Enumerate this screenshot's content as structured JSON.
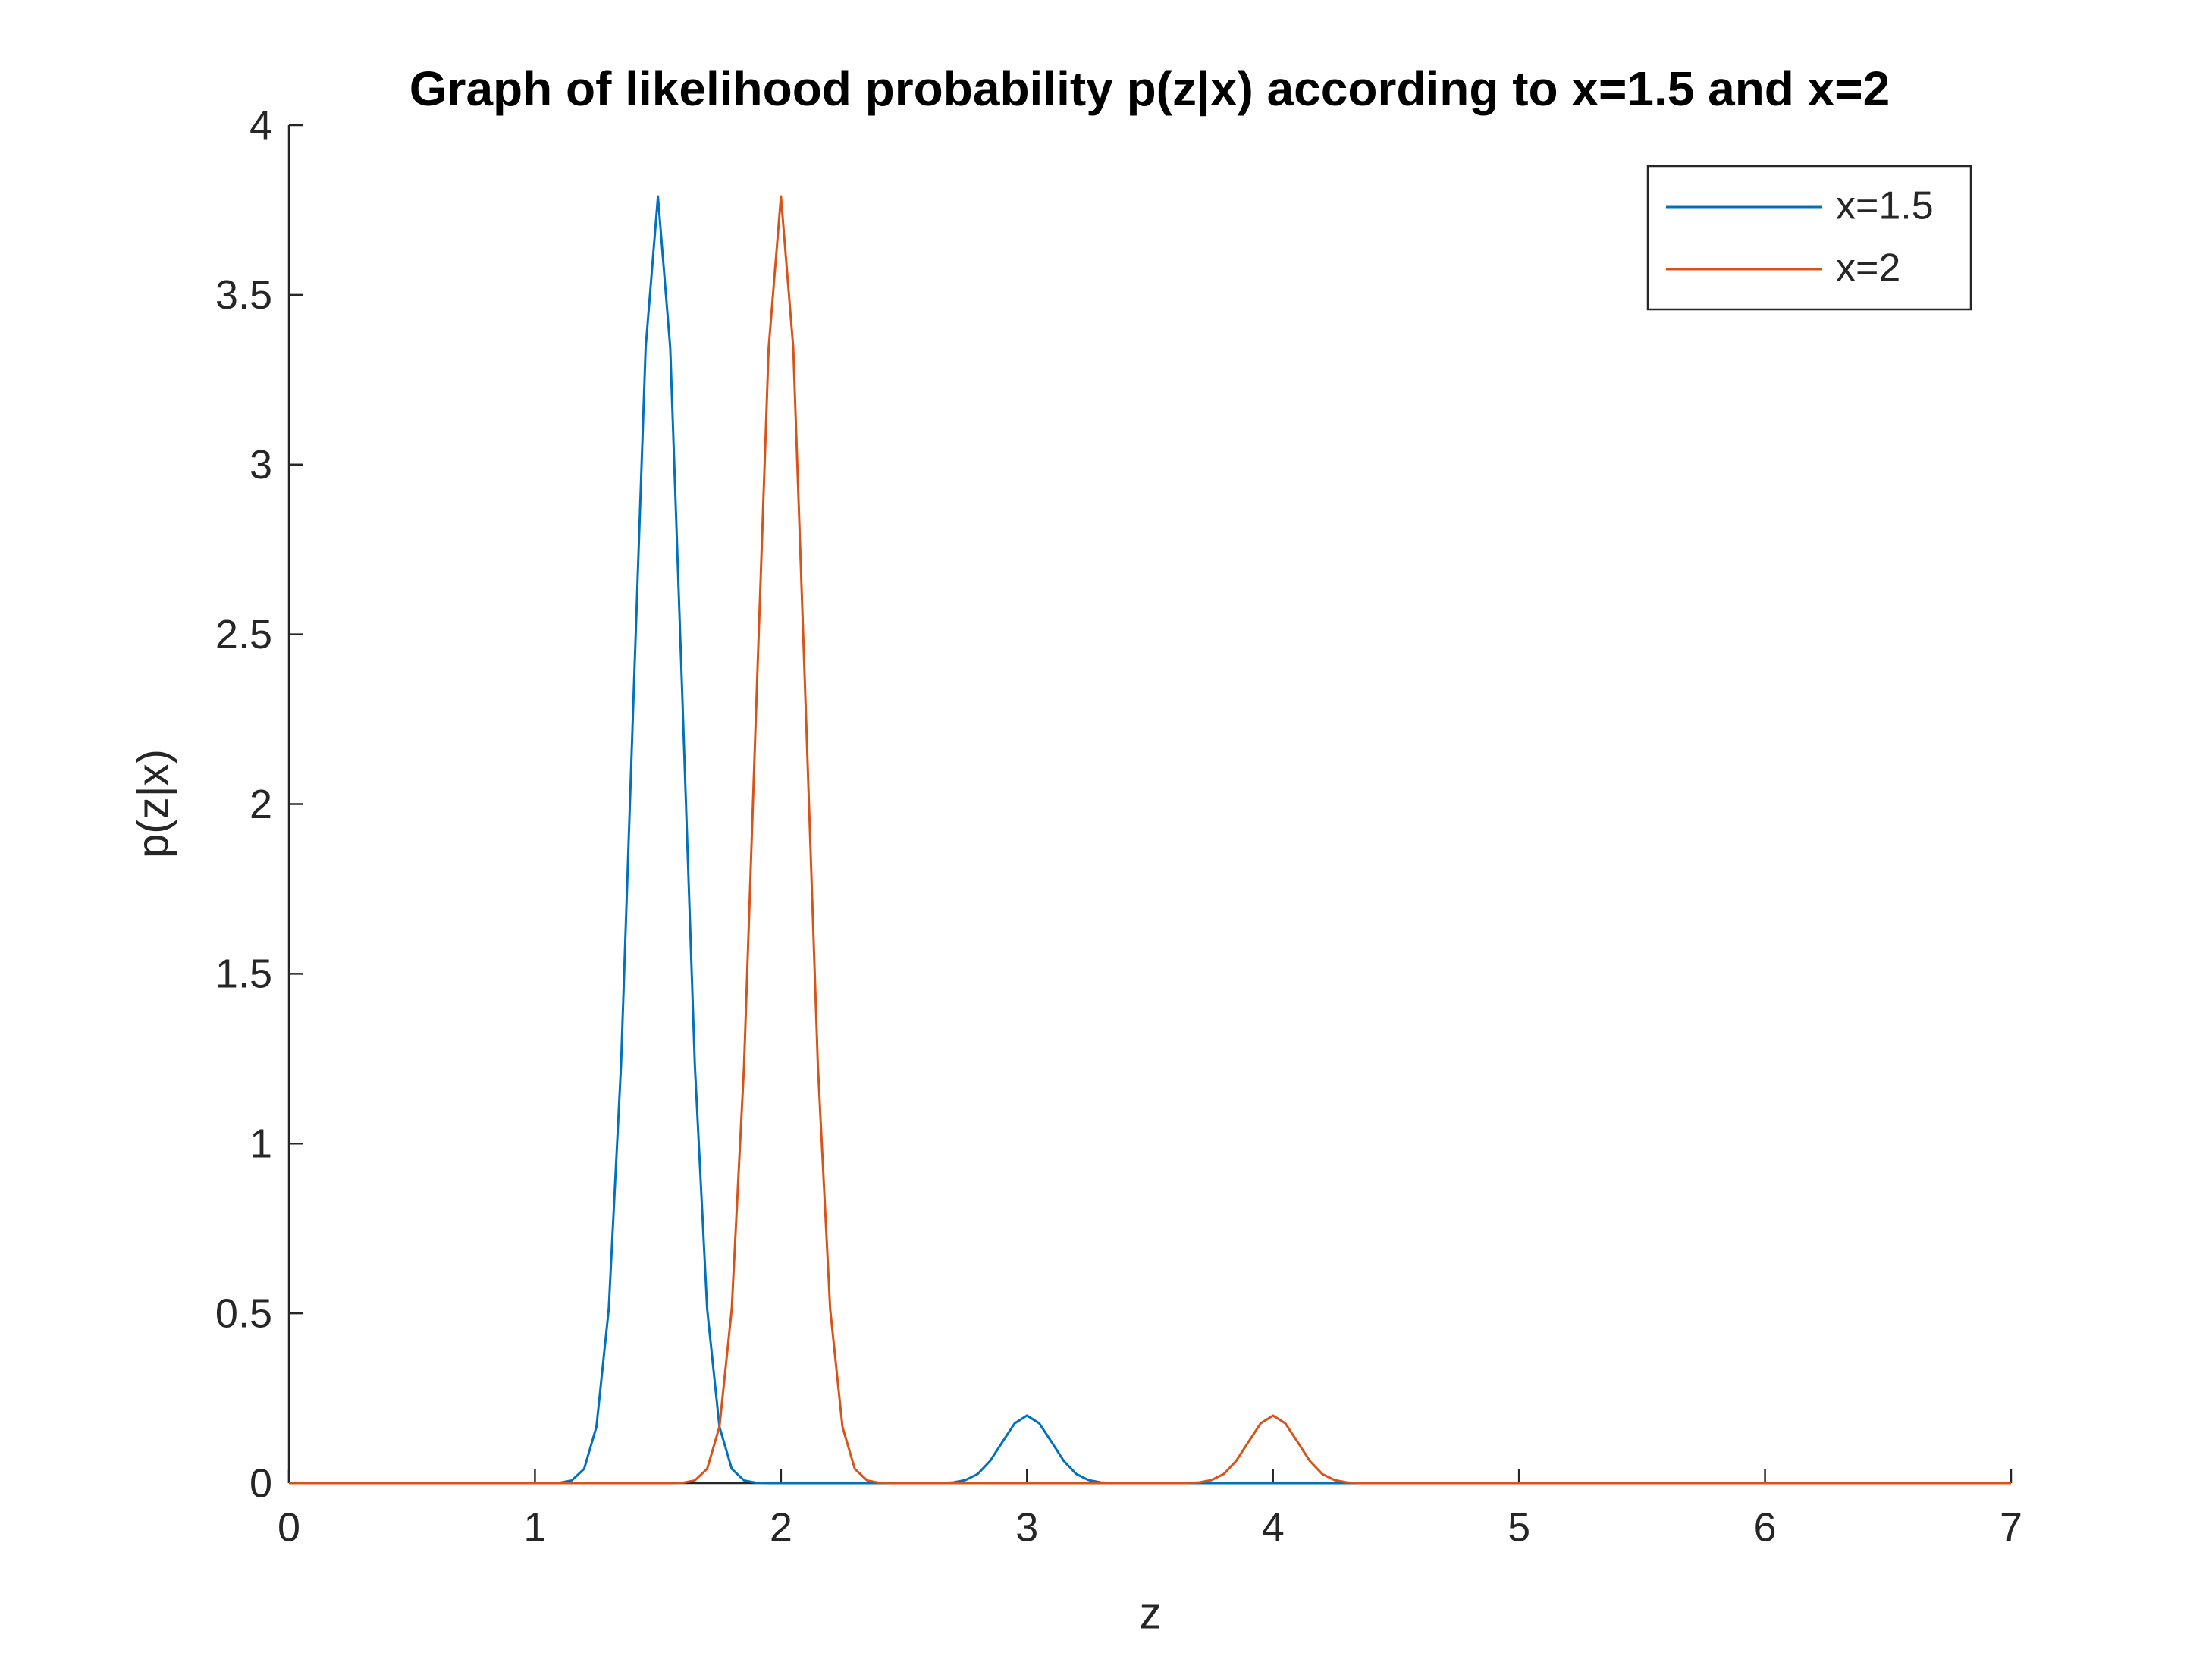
{
  "chart_data": {
    "type": "line",
    "title": "Graph of likelihood probability p(z|x) according to x=1.5 and x=2",
    "xlabel": "z",
    "ylabel": "p(z|x)",
    "xlim": [
      0,
      7
    ],
    "ylim": [
      0,
      4
    ],
    "xticks": [
      0,
      1,
      2,
      3,
      4,
      5,
      6,
      7
    ],
    "yticks": [
      0,
      0.5,
      1,
      1.5,
      2,
      2.5,
      3,
      3.5,
      4
    ],
    "legend": "top-right",
    "x": [
      0,
      0.05,
      0.1,
      0.15,
      0.2,
      0.25,
      0.3,
      0.35,
      0.4,
      0.45,
      0.5,
      0.55,
      0.6,
      0.65,
      0.7,
      0.75,
      0.8,
      0.85,
      0.9,
      0.95,
      1,
      1.05,
      1.1,
      1.15,
      1.2,
      1.25,
      1.3,
      1.35,
      1.4,
      1.45,
      1.5,
      1.55,
      1.6,
      1.65,
      1.7,
      1.75,
      1.8,
      1.85,
      1.9,
      1.95,
      2,
      2.05,
      2.1,
      2.15,
      2.2,
      2.25,
      2.3,
      2.35,
      2.4,
      2.45,
      2.5,
      2.55,
      2.6,
      2.65,
      2.7,
      2.75,
      2.8,
      2.85,
      2.9,
      2.95,
      3,
      3.05,
      3.1,
      3.15,
      3.2,
      3.25,
      3.3,
      3.35,
      3.4,
      3.45,
      3.5,
      3.55,
      3.6,
      3.65,
      3.7,
      3.75,
      3.8,
      3.85,
      3.9,
      3.95,
      4,
      4.05,
      4.1,
      4.15,
      4.2,
      4.25,
      4.3,
      4.35,
      4.4,
      4.45,
      4.5,
      4.55,
      4.6,
      4.65,
      4.7,
      4.75,
      4.8,
      4.85,
      4.9,
      4.95,
      5,
      5.05,
      5.1,
      5.15,
      5.2,
      5.25,
      5.3,
      5.35,
      5.4,
      5.45,
      5.5,
      5.55,
      5.6,
      5.65,
      5.7,
      5.75,
      5.8,
      5.85,
      5.9,
      5.95,
      6,
      6.05,
      6.1,
      6.15,
      6.2,
      6.25,
      6.3,
      6.35,
      6.4,
      6.45,
      6.5,
      6.55,
      6.6,
      6.65,
      6.7,
      6.75,
      6.8,
      6.85,
      6.9,
      6.95,
      7
    ],
    "series": [
      {
        "name": "x=1.5",
        "color": "#0072bd",
        "values": [
          0,
          0,
          0,
          0,
          0,
          0,
          0,
          0,
          0,
          0,
          0,
          0,
          0,
          0,
          0,
          0,
          0,
          0,
          0,
          0,
          0,
          0,
          0.001,
          0.008,
          0.042,
          0.166,
          0.513,
          1.231,
          2.298,
          3.344,
          3.79,
          3.344,
          2.298,
          1.231,
          0.513,
          0.166,
          0.042,
          0.008,
          0.001,
          0,
          0,
          0,
          0,
          0,
          0,
          0,
          0,
          0,
          0,
          0,
          0,
          0,
          0,
          0,
          0.002,
          0.009,
          0.027,
          0.065,
          0.121,
          0.176,
          0.199,
          0.176,
          0.121,
          0.065,
          0.027,
          0.009,
          0.002,
          0,
          0,
          0,
          0,
          0,
          0,
          0,
          0,
          0,
          0,
          0,
          0,
          0,
          0,
          0,
          0,
          0,
          0,
          0,
          0,
          0,
          0,
          0,
          0,
          0,
          0,
          0,
          0,
          0,
          0,
          0,
          0,
          0,
          0,
          0,
          0,
          0,
          0,
          0,
          0,
          0,
          0,
          0,
          0,
          0,
          0,
          0,
          0,
          0,
          0,
          0,
          0,
          0,
          0,
          0,
          0,
          0,
          0,
          0,
          0,
          0,
          0,
          0,
          0,
          0,
          0,
          0,
          0,
          0,
          0,
          0,
          0,
          0,
          0
        ]
      },
      {
        "name": "x=2",
        "color": "#d95319",
        "values": [
          0,
          0,
          0,
          0,
          0,
          0,
          0,
          0,
          0,
          0,
          0,
          0,
          0,
          0,
          0,
          0,
          0,
          0,
          0,
          0,
          0,
          0,
          0,
          0,
          0,
          0,
          0,
          0,
          0,
          0,
          0,
          0,
          0.001,
          0.008,
          0.042,
          0.166,
          0.513,
          1.231,
          2.298,
          3.344,
          3.79,
          3.344,
          2.298,
          1.231,
          0.513,
          0.166,
          0.042,
          0.008,
          0.001,
          0,
          0,
          0,
          0,
          0,
          0,
          0,
          0,
          0,
          0,
          0,
          0,
          0,
          0,
          0,
          0,
          0,
          0,
          0,
          0,
          0,
          0,
          0,
          0,
          0,
          0.002,
          0.009,
          0.027,
          0.065,
          0.121,
          0.176,
          0.199,
          0.176,
          0.121,
          0.065,
          0.027,
          0.009,
          0.002,
          0,
          0,
          0,
          0,
          0,
          0,
          0,
          0,
          0,
          0,
          0,
          0,
          0,
          0,
          0,
          0,
          0,
          0,
          0,
          0,
          0,
          0,
          0,
          0,
          0,
          0,
          0,
          0,
          0,
          0,
          0,
          0,
          0,
          0,
          0,
          0,
          0,
          0,
          0,
          0,
          0,
          0,
          0,
          0,
          0,
          0,
          0,
          0,
          0,
          0,
          0,
          0,
          0,
          0
        ]
      }
    ]
  }
}
